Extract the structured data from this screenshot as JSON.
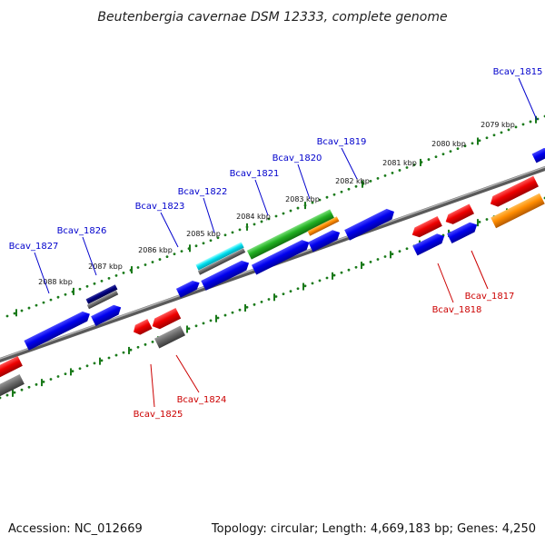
{
  "title": "Beutenbergia cavernae DSM 12333, complete genome",
  "footer": {
    "accession": "Accession: NC_012669",
    "summary": "Topology: circular; Length: 4,669,183 bp; Genes: 4,250"
  },
  "colors": {
    "forward_label": "#0000cc",
    "reverse_label": "#cc0000",
    "track_dots": "#1a7a1a",
    "backbone": "#8a8a8a"
  },
  "ticks_top": [
    "2079 kbp",
    "2080 kbp",
    "2081 kbp",
    "2082 kbp",
    "2083 kbp",
    "2084 kbp",
    "2085 kbp",
    "2086 kbp",
    "2087 kbp",
    "2088 kbp"
  ],
  "gene_labels_forward": [
    "Bcav_1815",
    "Bcav_1819",
    "Bcav_1820",
    "Bcav_1821",
    "Bcav_1822",
    "Bcav_1823",
    "Bcav_1826",
    "Bcav_1827"
  ],
  "gene_labels_reverse": [
    "Bcav_1817",
    "Bcav_1818",
    "Bcav_1824",
    "Bcav_1825"
  ],
  "feature_colors": {
    "blue": "blue",
    "red": "red",
    "gray": "gray",
    "green": "green",
    "orange": "orange",
    "cyan": "cyan",
    "navy": "navy"
  }
}
